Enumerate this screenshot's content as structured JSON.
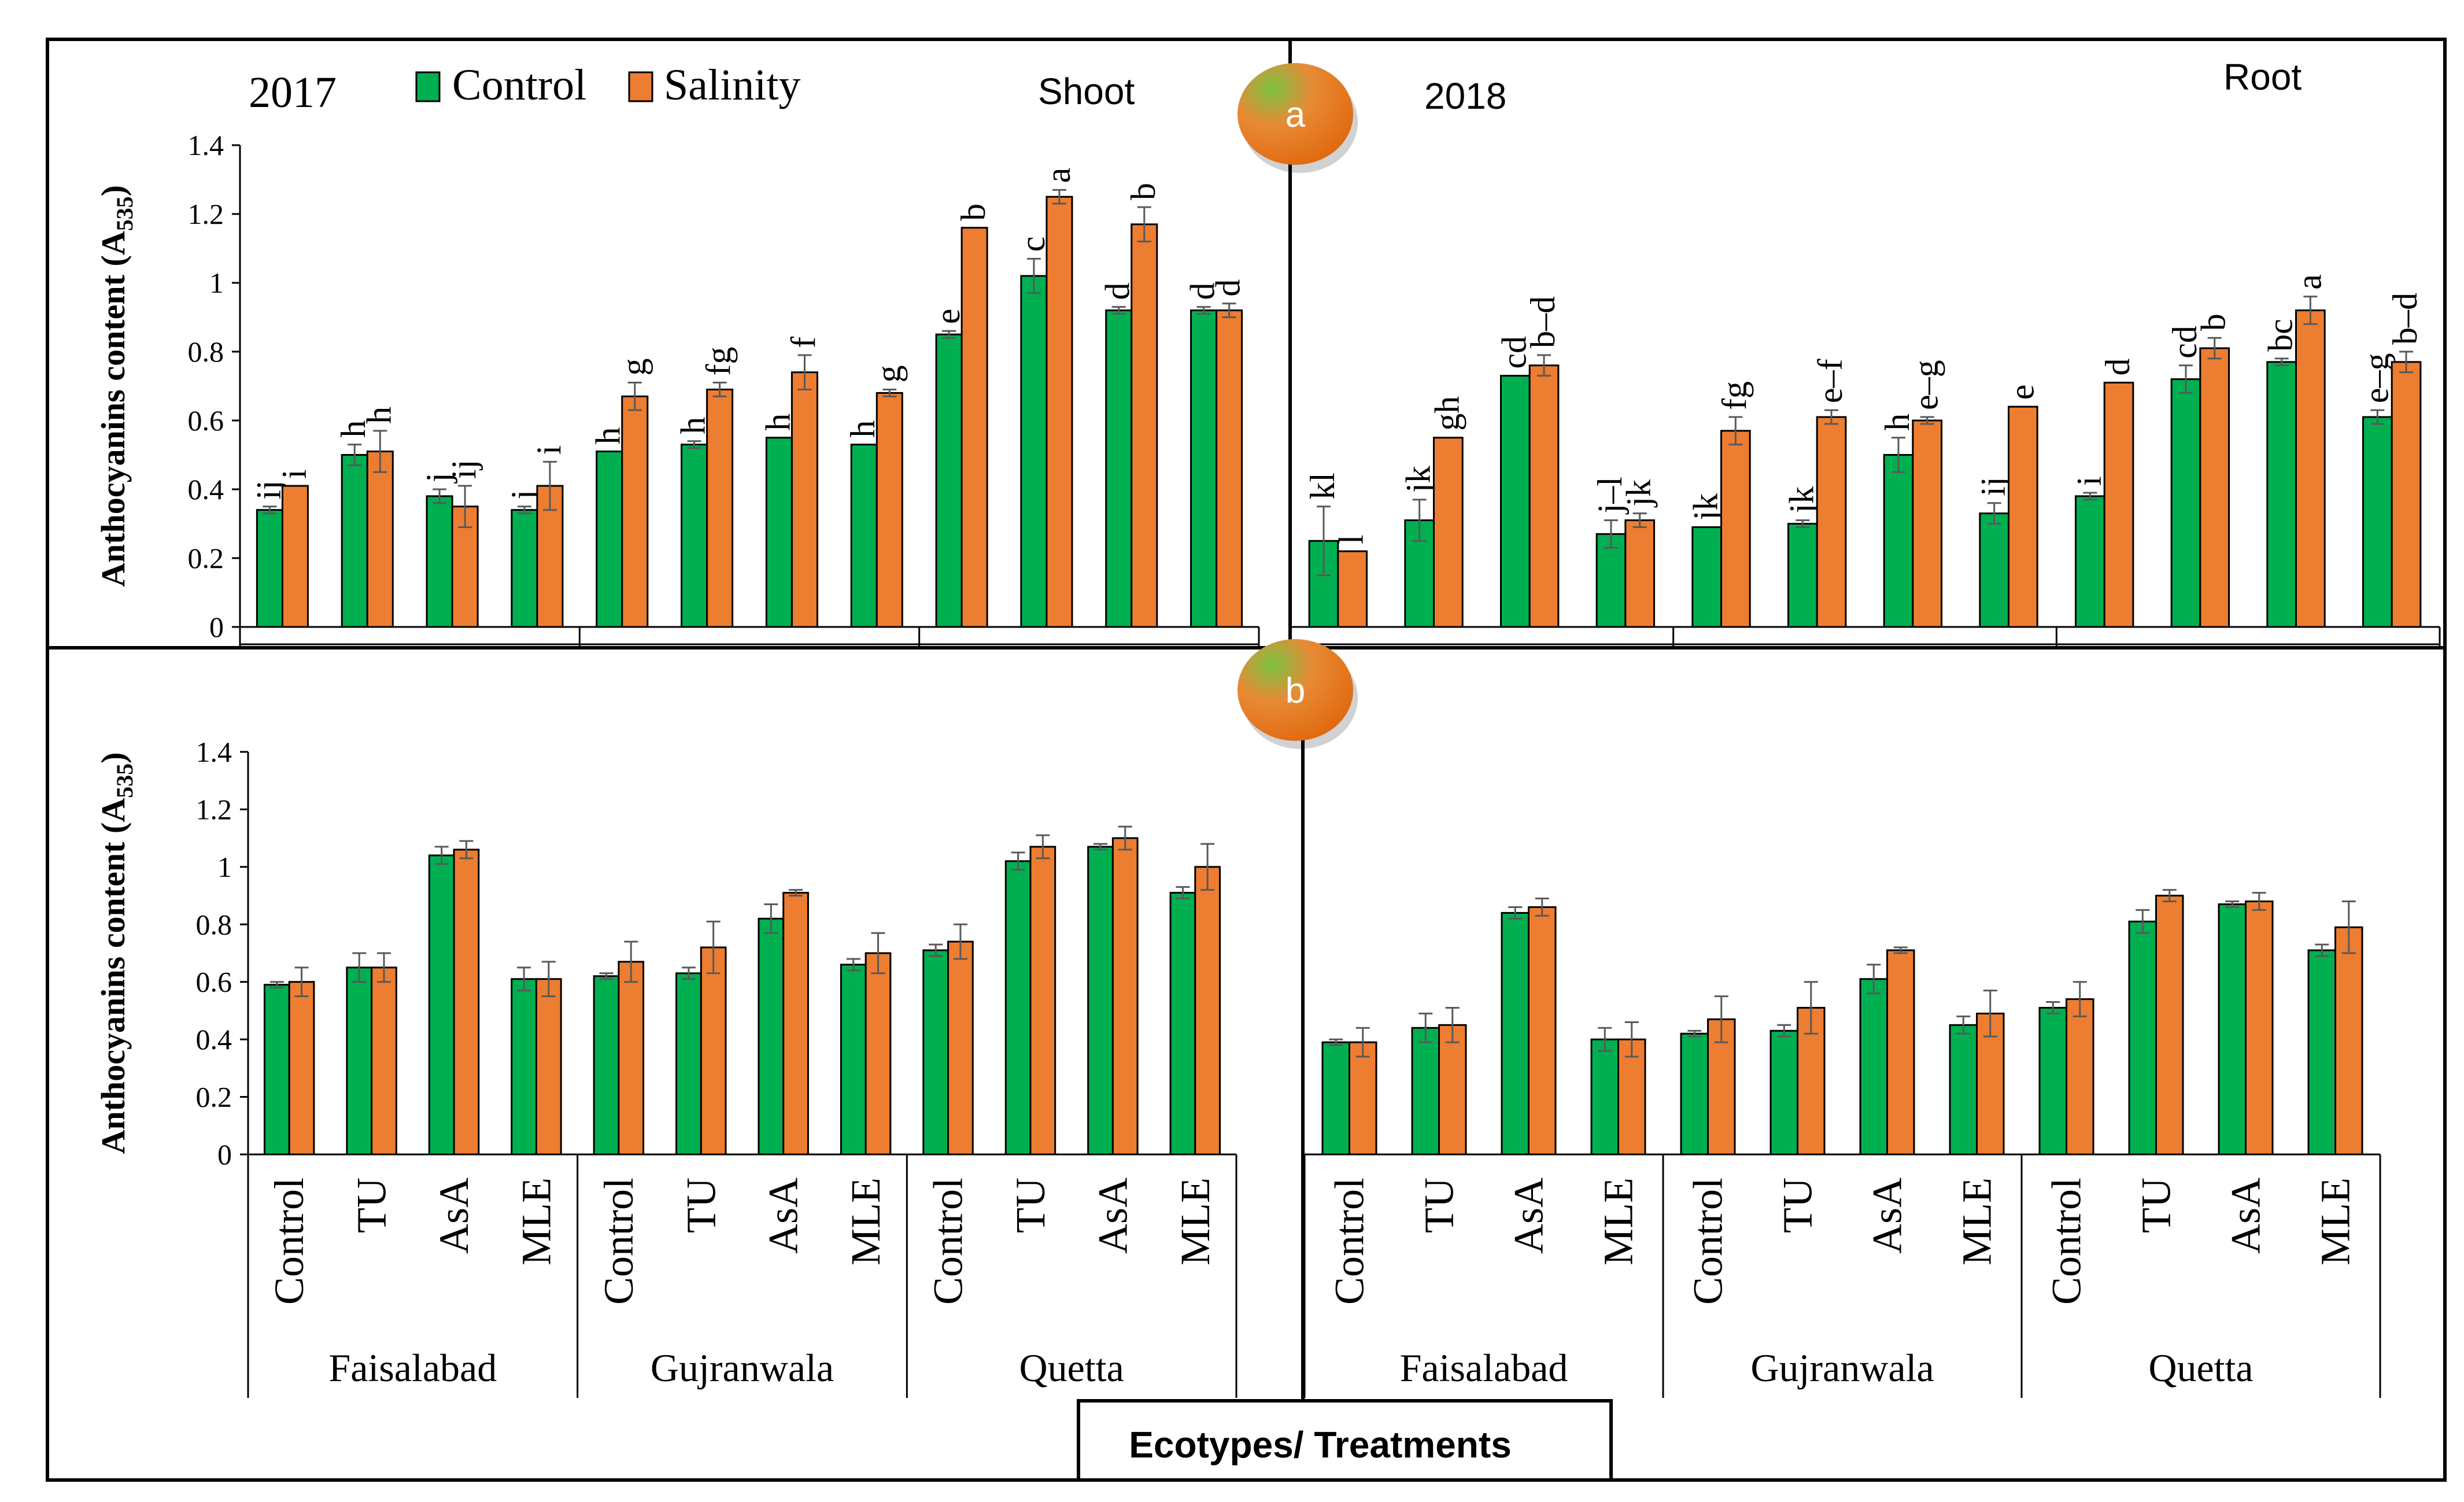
{
  "colors": {
    "control": "#00b050",
    "salinity": "#ed7d31",
    "axis": "#000000",
    "error": "#595959"
  },
  "legend": {
    "control": "Control",
    "salinity": "Salinity"
  },
  "badges": {
    "a": "a",
    "b": "b"
  },
  "xlabel": "Ecotypes/ Treatments",
  "chart_data": [
    {
      "type": "bar",
      "panel": "a",
      "title": "Shoot",
      "year": "2017",
      "ylabel": "Anthocyanins content (A535)",
      "ylabel_main": "Anthocyanins content (A",
      "ylabel_sub": "535",
      "ylim": [
        0,
        1.4
      ],
      "yticks": [
        "0",
        "0.2",
        "0.4",
        "0.6",
        "0.8",
        "1",
        "1.2",
        "1.4"
      ],
      "groups": [
        "Faisalabad",
        "Gujranwala",
        "Quetta"
      ],
      "categories": [
        "Control",
        "TU",
        "AsA",
        "MLE",
        "Control",
        "TU",
        "AsA",
        "MLE",
        "Control",
        "TU",
        "AsA",
        "MLE"
      ],
      "series": [
        {
          "name": "Control",
          "values": [
            0.34,
            0.5,
            0.38,
            0.34,
            0.51,
            0.53,
            0.55,
            0.53,
            0.85,
            1.02,
            0.92,
            0.92
          ],
          "errors": [
            0.01,
            0.03,
            0.02,
            0.01,
            0.0,
            0.01,
            0.0,
            0.0,
            0.01,
            0.05,
            0.01,
            0.01
          ],
          "letters": [
            "ij",
            "h",
            "j",
            "j",
            "h",
            "h",
            "h",
            "h",
            "e",
            "c",
            "d",
            "d"
          ]
        },
        {
          "name": "Salinity",
          "values": [
            0.41,
            0.51,
            0.35,
            0.41,
            0.67,
            0.69,
            0.74,
            0.68,
            1.16,
            1.25,
            1.17,
            0.92
          ],
          "errors": [
            0.0,
            0.06,
            0.06,
            0.07,
            0.04,
            0.02,
            0.05,
            0.01,
            0.0,
            0.02,
            0.05,
            0.02
          ],
          "letters": [
            "i",
            "h",
            "ij",
            "i",
            "g",
            "fg",
            "f",
            "g",
            "b",
            "a",
            "b",
            "d"
          ]
        }
      ]
    },
    {
      "type": "bar",
      "panel": "a",
      "title": "Root",
      "year": "2018",
      "ylim": [
        0,
        1.4
      ],
      "groups": [
        "Faisalabad",
        "Gujranwala",
        "Quetta"
      ],
      "categories": [
        "Control",
        "TU",
        "AsA",
        "MLE",
        "Control",
        "TU",
        "AsA",
        "MLE",
        "Control",
        "TU",
        "AsA",
        "MLE"
      ],
      "series": [
        {
          "name": "Control",
          "values": [
            0.25,
            0.31,
            0.73,
            0.27,
            0.29,
            0.3,
            0.5,
            0.33,
            0.38,
            0.72,
            0.77,
            0.61
          ],
          "errors": [
            0.1,
            0.06,
            0.0,
            0.04,
            0.0,
            0.01,
            0.05,
            0.03,
            0.01,
            0.04,
            0.01,
            0.02
          ],
          "letters": [
            "kl",
            "jk",
            "cd",
            "j–l",
            "jk",
            "jk",
            "h",
            "ij",
            "i",
            "cd",
            "bc",
            "e–g"
          ]
        },
        {
          "name": "Salinity",
          "values": [
            0.22,
            0.55,
            0.76,
            0.31,
            0.57,
            0.61,
            0.6,
            0.64,
            0.71,
            0.81,
            0.92,
            0.77
          ],
          "errors": [
            0.0,
            0.0,
            0.03,
            0.02,
            0.04,
            0.02,
            0.01,
            0.0,
            0.0,
            0.03,
            0.04,
            0.03
          ],
          "letters": [
            "l",
            "gh",
            "b–d",
            "jk",
            "fg",
            "e–f",
            "e–g",
            "e",
            "d",
            "b",
            "a",
            "b–d"
          ]
        }
      ]
    },
    {
      "type": "bar",
      "panel": "b",
      "ylabel": "Anthocyanins content (A535)",
      "ylabel_main": "Anthocyanins content (A",
      "ylabel_sub": "535",
      "ylim": [
        0,
        1.4
      ],
      "yticks": [
        "0",
        "0.2",
        "0.4",
        "0.6",
        "0.8",
        "1",
        "1.2",
        "1.4"
      ],
      "groups": [
        "Faisalabad",
        "Gujranwala",
        "Quetta"
      ],
      "categories": [
        "Control",
        "TU",
        "AsA",
        "MLE",
        "Control",
        "TU",
        "AsA",
        "MLE",
        "Control",
        "TU",
        "AsA",
        "MLE"
      ],
      "series": [
        {
          "name": "Control",
          "values": [
            0.59,
            0.65,
            1.04,
            0.61,
            0.62,
            0.63,
            0.82,
            0.66,
            0.71,
            1.02,
            1.07,
            0.91
          ],
          "errors": [
            0.01,
            0.05,
            0.03,
            0.04,
            0.01,
            0.02,
            0.05,
            0.02,
            0.02,
            0.03,
            0.01,
            0.02
          ]
        },
        {
          "name": "Salinity",
          "values": [
            0.6,
            0.65,
            1.06,
            0.61,
            0.67,
            0.72,
            0.91,
            0.7,
            0.74,
            1.07,
            1.1,
            1.0
          ],
          "errors": [
            0.05,
            0.05,
            0.03,
            0.06,
            0.07,
            0.09,
            0.01,
            0.07,
            0.06,
            0.04,
            0.04,
            0.08
          ]
        }
      ]
    },
    {
      "type": "bar",
      "panel": "b",
      "ylim": [
        0,
        1.4
      ],
      "groups": [
        "Faisalabad",
        "Gujranwala",
        "Quetta"
      ],
      "categories": [
        "Control",
        "TU",
        "AsA",
        "MLE",
        "Control",
        "TU",
        "AsA",
        "MLE",
        "Control",
        "TU",
        "AsA",
        "MLE"
      ],
      "series": [
        {
          "name": "Control",
          "values": [
            0.39,
            0.44,
            0.84,
            0.4,
            0.42,
            0.43,
            0.61,
            0.45,
            0.51,
            0.81,
            0.87,
            0.71
          ],
          "errors": [
            0.01,
            0.05,
            0.02,
            0.04,
            0.01,
            0.02,
            0.05,
            0.03,
            0.02,
            0.04,
            0.01,
            0.02
          ]
        },
        {
          "name": "Salinity",
          "values": [
            0.39,
            0.45,
            0.86,
            0.4,
            0.47,
            0.51,
            0.71,
            0.49,
            0.54,
            0.9,
            0.88,
            0.79
          ],
          "errors": [
            0.05,
            0.06,
            0.03,
            0.06,
            0.08,
            0.09,
            0.01,
            0.08,
            0.06,
            0.02,
            0.03,
            0.09
          ]
        }
      ]
    }
  ]
}
